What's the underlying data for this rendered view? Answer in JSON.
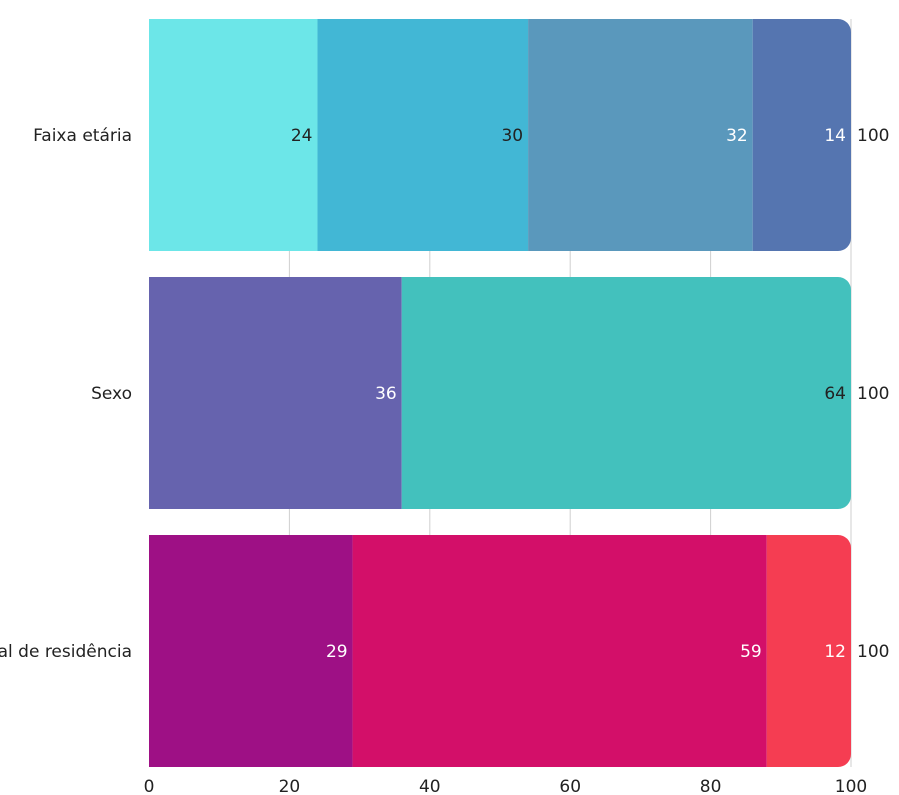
{
  "chart_data": {
    "type": "bar",
    "orientation": "horizontal",
    "stacked": true,
    "title": "",
    "xlabel": "",
    "ylabel": "",
    "xlim": [
      0,
      100
    ],
    "x_ticks": [
      0,
      20,
      40,
      60,
      80,
      100
    ],
    "grid": "vertical",
    "legend": "none",
    "categories": [
      {
        "label": "Faixa etária",
        "total": 100,
        "segments": [
          {
            "value": 24,
            "color": "#6ce6e8",
            "label_color": "#222222"
          },
          {
            "value": 30,
            "color": "#42b7d5",
            "label_color": "#222222"
          },
          {
            "value": 32,
            "color": "#5a98bc",
            "label_color": "#ffffff"
          },
          {
            "value": 14,
            "color": "#5575b0",
            "label_color": "#ffffff"
          }
        ]
      },
      {
        "label": "Sexo",
        "total": 100,
        "segments": [
          {
            "value": 36,
            "color": "#6663ae",
            "label_color": "#ffffff"
          },
          {
            "value": 64,
            "color": "#43c1bd",
            "label_color": "#222222"
          }
        ]
      },
      {
        "label": "Local de residência",
        "total": 100,
        "segments": [
          {
            "value": 29,
            "color": "#9e1085",
            "label_color": "#ffffff"
          },
          {
            "value": 59,
            "color": "#d30f69",
            "label_color": "#ffffff"
          },
          {
            "value": 12,
            "color": "#f53d52",
            "label_color": "#ffffff"
          }
        ]
      }
    ]
  }
}
